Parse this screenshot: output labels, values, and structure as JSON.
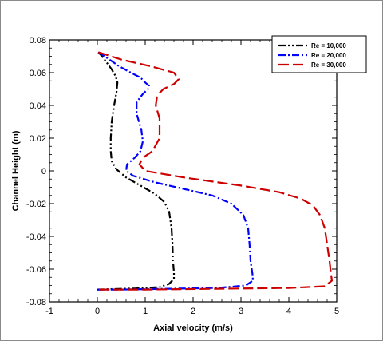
{
  "chart_data": {
    "type": "line",
    "title": "",
    "xlabel": "Axial velocity (m/s)",
    "ylabel": "Channel Height (m)",
    "xlim": [
      -1,
      5
    ],
    "ylim": [
      -0.08,
      0.08
    ],
    "xticks": [
      -1,
      0,
      1,
      2,
      3,
      4,
      5
    ],
    "yticks": [
      -0.08,
      -0.06,
      -0.04,
      -0.02,
      0,
      0.02,
      0.04,
      0.06,
      0.08
    ],
    "xtick_labels": [
      "-1",
      "0",
      "1",
      "2",
      "3",
      "4",
      "5"
    ],
    "ytick_labels": [
      "-0.08",
      "-0.06",
      "-0.04",
      "-0.02",
      "0",
      "0.02",
      "0.04",
      "0.06",
      "0.08"
    ],
    "grid": false,
    "legend_position": "top-right",
    "series": [
      {
        "name": "Re = 10,000",
        "color": "#000000",
        "dash": "dash-dot-dot",
        "points": [
          [
            0.02,
            0.0725
          ],
          [
            0.1,
            0.07
          ],
          [
            0.2,
            0.066
          ],
          [
            0.3,
            0.062
          ],
          [
            0.38,
            0.058
          ],
          [
            0.42,
            0.054
          ],
          [
            0.4,
            0.048
          ],
          [
            0.35,
            0.04
          ],
          [
            0.3,
            0.03
          ],
          [
            0.28,
            0.02
          ],
          [
            0.28,
            0.012
          ],
          [
            0.3,
            0.006
          ],
          [
            0.4,
            0.001
          ],
          [
            0.6,
            -0.004
          ],
          [
            0.9,
            -0.009
          ],
          [
            1.2,
            -0.014
          ],
          [
            1.4,
            -0.019
          ],
          [
            1.5,
            -0.025
          ],
          [
            1.55,
            -0.035
          ],
          [
            1.57,
            -0.045
          ],
          [
            1.58,
            -0.055
          ],
          [
            1.6,
            -0.062
          ],
          [
            1.6,
            -0.066
          ],
          [
            1.5,
            -0.069
          ],
          [
            1.3,
            -0.071
          ],
          [
            0.8,
            -0.0718
          ],
          [
            0.2,
            -0.0723
          ],
          [
            0.0,
            -0.0725
          ]
        ]
      },
      {
        "name": "Re = 20,000",
        "color": "#0000ff",
        "dash": "dash-dot",
        "points": [
          [
            0.02,
            0.0725
          ],
          [
            0.2,
            0.069
          ],
          [
            0.45,
            0.064
          ],
          [
            0.7,
            0.06
          ],
          [
            0.9,
            0.057
          ],
          [
            1.0,
            0.054
          ],
          [
            1.08,
            0.052
          ],
          [
            1.06,
            0.05
          ],
          [
            0.95,
            0.047
          ],
          [
            0.82,
            0.042
          ],
          [
            0.82,
            0.035
          ],
          [
            0.92,
            0.025
          ],
          [
            0.95,
            0.018
          ],
          [
            0.9,
            0.012
          ],
          [
            0.78,
            0.008
          ],
          [
            0.62,
            0.004
          ],
          [
            0.6,
            0.0
          ],
          [
            0.75,
            -0.003
          ],
          [
            1.2,
            -0.007
          ],
          [
            1.8,
            -0.011
          ],
          [
            2.4,
            -0.015
          ],
          [
            2.8,
            -0.02
          ],
          [
            3.05,
            -0.027
          ],
          [
            3.15,
            -0.035
          ],
          [
            3.18,
            -0.045
          ],
          [
            3.2,
            -0.055
          ],
          [
            3.24,
            -0.063
          ],
          [
            3.25,
            -0.067
          ],
          [
            3.1,
            -0.07
          ],
          [
            2.5,
            -0.0715
          ],
          [
            1.5,
            -0.072
          ],
          [
            0.5,
            -0.0725
          ],
          [
            0.0,
            -0.0725
          ]
        ]
      },
      {
        "name": "Re = 30,000",
        "color": "#cc0000",
        "dash": "long-dash",
        "points": [
          [
            0.02,
            0.0725
          ],
          [
            0.5,
            0.068
          ],
          [
            1.1,
            0.064
          ],
          [
            1.6,
            0.06
          ],
          [
            1.7,
            0.056
          ],
          [
            1.6,
            0.053
          ],
          [
            1.38,
            0.05
          ],
          [
            1.25,
            0.046
          ],
          [
            1.22,
            0.04
          ],
          [
            1.3,
            0.032
          ],
          [
            1.3,
            0.02
          ],
          [
            1.15,
            0.012
          ],
          [
            0.95,
            0.008
          ],
          [
            0.88,
            0.004
          ],
          [
            1.0,
            0.0
          ],
          [
            1.8,
            -0.004
          ],
          [
            3.0,
            -0.009
          ],
          [
            3.8,
            -0.013
          ],
          [
            4.25,
            -0.017
          ],
          [
            4.5,
            -0.021
          ],
          [
            4.65,
            -0.027
          ],
          [
            4.75,
            -0.035
          ],
          [
            4.8,
            -0.045
          ],
          [
            4.85,
            -0.055
          ],
          [
            4.88,
            -0.063
          ],
          [
            4.9,
            -0.067
          ],
          [
            4.75,
            -0.0705
          ],
          [
            4.0,
            -0.0715
          ],
          [
            2.5,
            -0.072
          ],
          [
            1.0,
            -0.0725
          ],
          [
            0.0,
            -0.0725
          ]
        ]
      }
    ]
  }
}
